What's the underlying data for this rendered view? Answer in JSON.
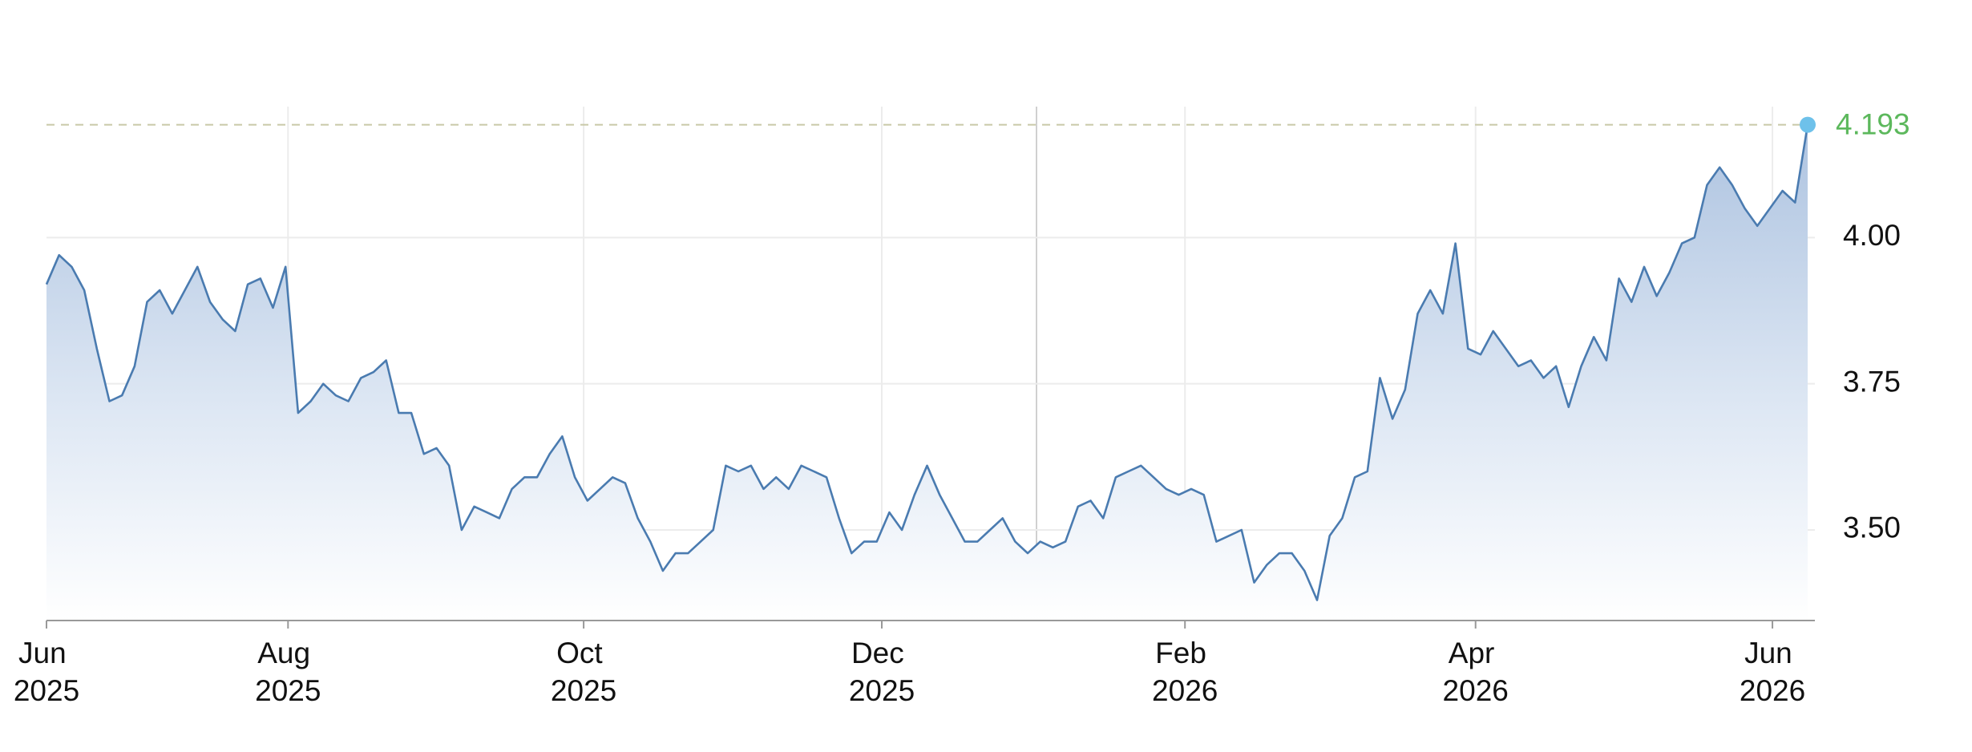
{
  "chart_data": {
    "type": "area",
    "values": [
      3.92,
      3.97,
      3.95,
      3.91,
      3.81,
      3.72,
      3.73,
      3.78,
      3.89,
      3.91,
      3.87,
      3.91,
      3.95,
      3.89,
      3.86,
      3.84,
      3.92,
      3.93,
      3.88,
      3.95,
      3.7,
      3.72,
      3.75,
      3.73,
      3.72,
      3.76,
      3.77,
      3.79,
      3.7,
      3.7,
      3.63,
      3.64,
      3.61,
      3.5,
      3.54,
      3.53,
      3.52,
      3.57,
      3.59,
      3.59,
      3.63,
      3.66,
      3.59,
      3.55,
      3.57,
      3.59,
      3.58,
      3.52,
      3.48,
      3.43,
      3.46,
      3.46,
      3.48,
      3.5,
      3.61,
      3.6,
      3.61,
      3.57,
      3.59,
      3.57,
      3.61,
      3.6,
      3.59,
      3.52,
      3.46,
      3.48,
      3.48,
      3.53,
      3.5,
      3.56,
      3.61,
      3.56,
      3.52,
      3.48,
      3.48,
      3.5,
      3.52,
      3.48,
      3.46,
      3.48,
      3.47,
      3.48,
      3.54,
      3.55,
      3.52,
      3.59,
      3.6,
      3.61,
      3.59,
      3.57,
      3.56,
      3.57,
      3.56,
      3.48,
      3.49,
      3.5,
      3.41,
      3.44,
      3.46,
      3.46,
      3.43,
      3.38,
      3.49,
      3.52,
      3.59,
      3.6,
      3.76,
      3.69,
      3.74,
      3.87,
      3.91,
      3.87,
      3.99,
      3.81,
      3.8,
      3.84,
      3.81,
      3.78,
      3.79,
      3.76,
      3.78,
      3.71,
      3.78,
      3.83,
      3.79,
      3.93,
      3.89,
      3.95,
      3.9,
      3.94,
      3.99,
      4.0,
      4.09,
      4.12,
      4.09,
      4.05,
      4.02,
      4.05,
      4.08,
      4.06,
      4.193
    ],
    "color": "#4a7bb0",
    "xlim": [
      0,
      140
    ],
    "xticks": [
      {
        "value": 0,
        "label": "Jun 2025"
      },
      {
        "value": 19.2,
        "label": "Aug 2025"
      },
      {
        "value": 42.7,
        "label": "Oct 2025"
      },
      {
        "value": 66.4,
        "label": "Dec 2025"
      },
      {
        "value": 90.5,
        "label": "Feb 2026"
      },
      {
        "value": 113.6,
        "label": "Apr 2026"
      },
      {
        "value": 137.2,
        "label": "Jun 2026"
      }
    ],
    "ylim": [
      3.345,
      4.224
    ],
    "yticks": [
      {
        "value": 3.5,
        "label": "3.50"
      },
      3.75,
      {
        "value": 4,
        "label": "4.00"
      }
    ],
    "grid": true
  }
}
